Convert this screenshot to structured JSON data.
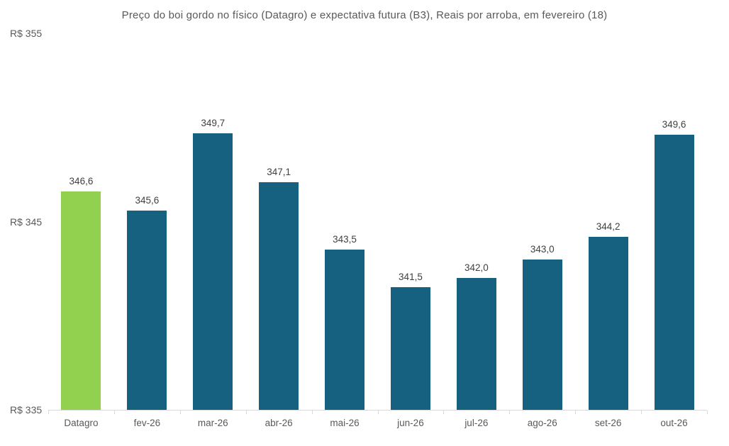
{
  "title": "Preço do boi gordo no físico (Datagro)  e expectativa futura (B3), Reais por arroba, em fevereiro (18)",
  "colors": {
    "bar_default": "#166080",
    "bar_highlight": "#92D050",
    "title_text": "#595959",
    "axis_text": "#595959",
    "data_label_text": "#404040",
    "axis_line": "#d9d9d9",
    "background": "#ffffff"
  },
  "chart_data": {
    "type": "bar",
    "title": "Preço do boi gordo no físico (Datagro)  e expectativa futura (B3), Reais por arroba, em fevereiro (18)",
    "categories": [
      "Datagro",
      "fev-26",
      "mar-26",
      "abr-26",
      "mai-26",
      "jun-26",
      "jul-26",
      "ago-26",
      "set-26",
      "out-26"
    ],
    "values": [
      346.6,
      345.6,
      349.7,
      347.1,
      343.5,
      341.5,
      342.0,
      343.0,
      344.2,
      349.6
    ],
    "data_labels": [
      "346,6",
      "345,6",
      "349,7",
      "347,1",
      "343,5",
      "341,5",
      "342,0",
      "343,0",
      "344,2",
      "349,6"
    ],
    "highlight_index": 0,
    "xlabel": "",
    "ylabel": "",
    "ylim": [
      335,
      355
    ],
    "y_ticks": [
      {
        "value": 355,
        "label": "R$ 355"
      },
      {
        "value": 345,
        "label": "R$ 345"
      },
      {
        "value": 335,
        "label": "R$ 335"
      }
    ],
    "grid": false,
    "legend": false,
    "legend_position": "none"
  }
}
